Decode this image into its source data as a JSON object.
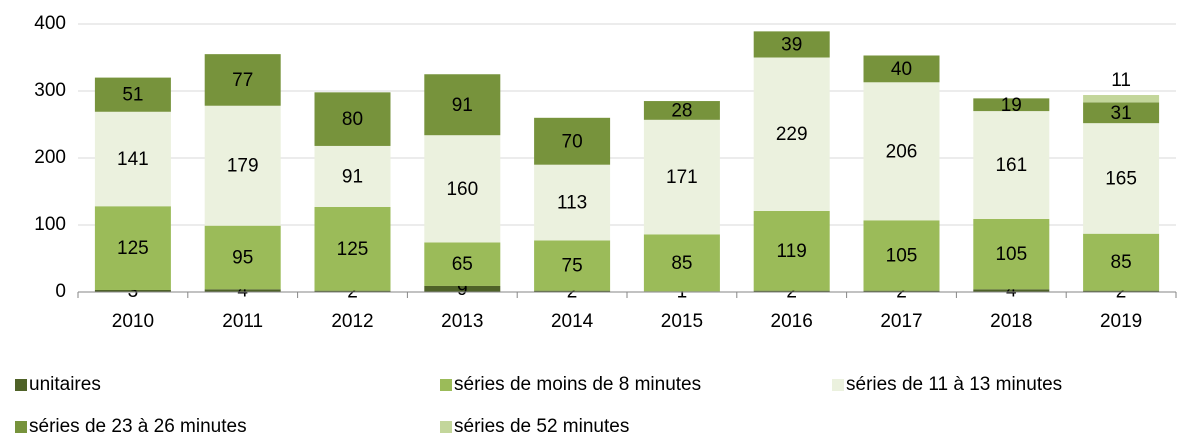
{
  "chart_data": {
    "type": "stacked_bar",
    "categories": [
      "2010",
      "2011",
      "2012",
      "2013",
      "2014",
      "2015",
      "2016",
      "2017",
      "2018",
      "2019"
    ],
    "series": [
      {
        "name": "unitaires",
        "color": "#4f6228",
        "values": [
          3,
          4,
          2,
          9,
          2,
          1,
          2,
          2,
          4,
          2
        ]
      },
      {
        "name": "séries de moins de 8 minutes",
        "color": "#9bbb59",
        "values": [
          125,
          95,
          125,
          65,
          75,
          85,
          119,
          105,
          105,
          85
        ]
      },
      {
        "name": "séries de 11 à 13 minutes",
        "color": "#ebf1de",
        "values": [
          141,
          179,
          91,
          160,
          113,
          171,
          229,
          206,
          161,
          165
        ]
      },
      {
        "name": "séries de 23 à 26 minutes",
        "color": "#77933c",
        "values": [
          51,
          77,
          80,
          91,
          70,
          28,
          39,
          40,
          19,
          31
        ]
      },
      {
        "name": "séries de 52 minutes",
        "color": "#c3d69b",
        "values": [
          null,
          null,
          null,
          null,
          null,
          null,
          null,
          null,
          null,
          11
        ]
      }
    ],
    "ylim": [
      0,
      400
    ],
    "yticks": [
      0,
      100,
      200,
      300,
      400
    ],
    "grid": true,
    "legend": "bottom"
  }
}
